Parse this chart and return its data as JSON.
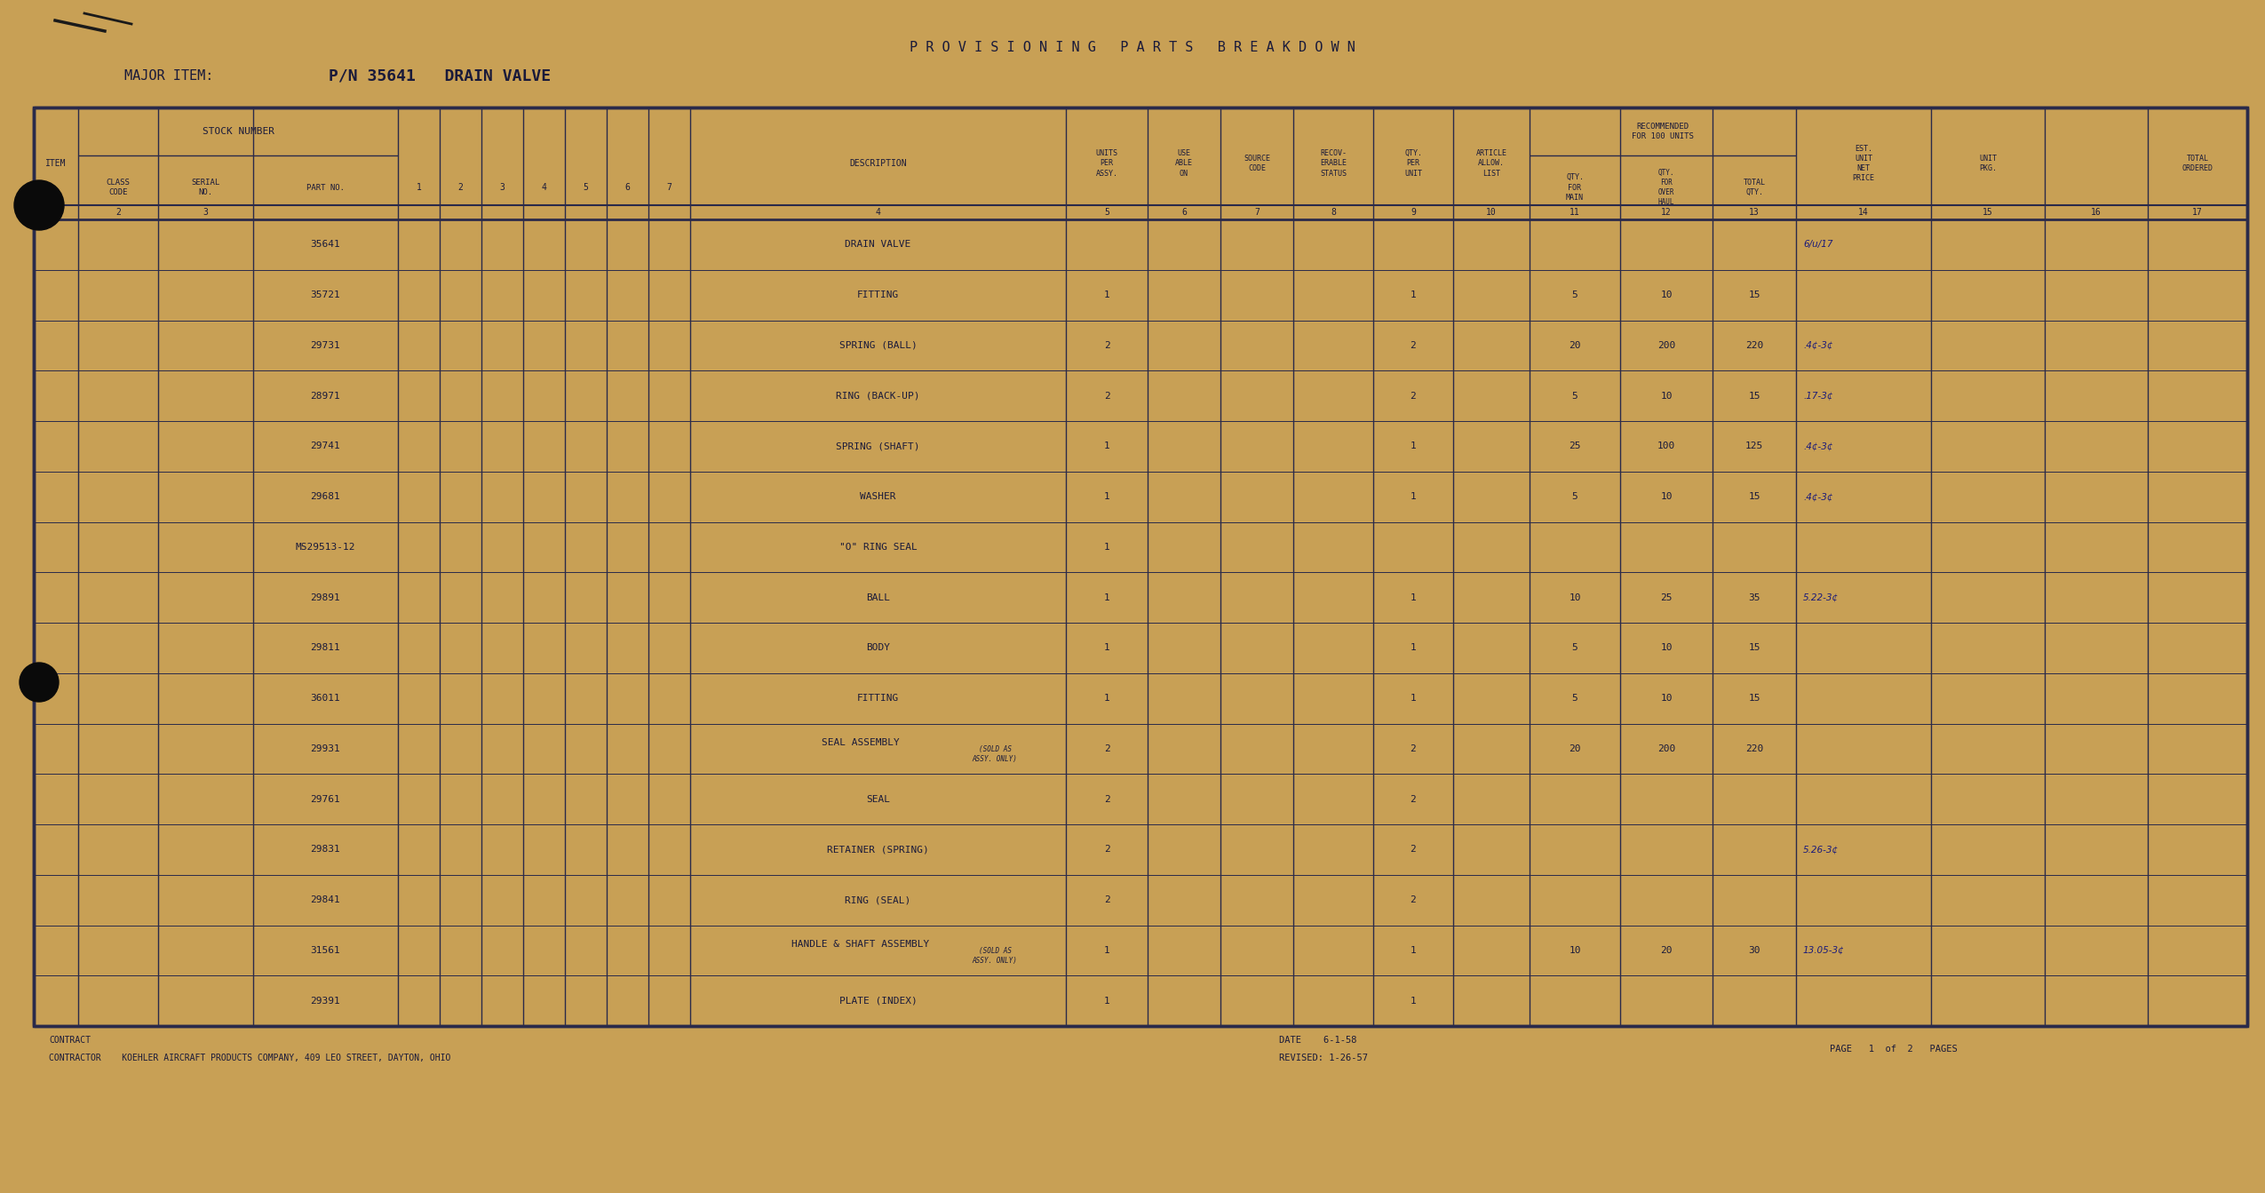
{
  "bg_color": "#C8A055",
  "line_color": "#2a2a4a",
  "text_color": "#1a1a3a",
  "title": "P R O V I S I O N I N G   P A R T S   B R E A K D O W N",
  "major_item_label": "MAJOR ITEM:",
  "major_item_value": "P/N 35641   DRAIN VALVE",
  "rows": [
    {
      "part_no": "35641",
      "description": "DRAIN VALVE",
      "note": "",
      "upa": "",
      "qpu": "",
      "qfm": "",
      "qfoh": "",
      "tqty": "",
      "price": "6/u/17",
      "indent": 0
    },
    {
      "part_no": "35721",
      "description": "FITTING",
      "note": "",
      "upa": "1",
      "qpu": "1",
      "qfm": "5",
      "qfoh": "10",
      "tqty": "15",
      "price": "",
      "indent": 0
    },
    {
      "part_no": "29731",
      "description": "SPRING (BALL)",
      "note": "",
      "upa": "2",
      "qpu": "2",
      "qfm": "20",
      "qfoh": "200",
      "tqty": "220",
      "price": ".4¢-3¢",
      "indent": 0
    },
    {
      "part_no": "28971",
      "description": "RING (BACK-UP)",
      "note": "",
      "upa": "2",
      "qpu": "2",
      "qfm": "5",
      "qfoh": "10",
      "tqty": "15",
      "price": ".17-3¢",
      "indent": 0
    },
    {
      "part_no": "29741",
      "description": "SPRING (SHAFT)",
      "note": "",
      "upa": "1",
      "qpu": "1",
      "qfm": "25",
      "qfoh": "100",
      "tqty": "125",
      "price": ".4¢-3¢",
      "indent": 0
    },
    {
      "part_no": "29681",
      "description": "WASHER",
      "note": "",
      "upa": "1",
      "qpu": "1",
      "qfm": "5",
      "qfoh": "10",
      "tqty": "15",
      "price": ".4¢-3¢",
      "indent": 0
    },
    {
      "part_no": "MS29513-12",
      "description": "\"O\" RING SEAL",
      "note": "",
      "upa": "1",
      "qpu": "",
      "qfm": "",
      "qfoh": "",
      "tqty": "",
      "price": "",
      "indent": 0
    },
    {
      "part_no": "29891",
      "description": "BALL",
      "note": "",
      "upa": "1",
      "qpu": "1",
      "qfm": "10",
      "qfoh": "25",
      "tqty": "35",
      "price": "5.22-3¢",
      "indent": 0
    },
    {
      "part_no": "29811",
      "description": "BODY",
      "note": "",
      "upa": "1",
      "qpu": "1",
      "qfm": "5",
      "qfoh": "10",
      "tqty": "15",
      "price": "",
      "indent": 0
    },
    {
      "part_no": "36011",
      "description": "FITTING",
      "note": "",
      "upa": "1",
      "qpu": "1",
      "qfm": "5",
      "qfoh": "10",
      "tqty": "15",
      "price": "",
      "indent": 0
    },
    {
      "part_no": "29931",
      "description": "SEAL ASSEMBLY",
      "note": "(SOLD AS\nASSY. ONLY)",
      "upa": "2",
      "qpu": "2",
      "qfm": "20",
      "qfoh": "200",
      "tqty": "220",
      "price": "",
      "indent": 0
    },
    {
      "part_no": "29761",
      "description": "SEAL",
      "note": "",
      "upa": "2",
      "qpu": "2",
      "qfm": "",
      "qfoh": "",
      "tqty": "",
      "price": "",
      "indent": 1
    },
    {
      "part_no": "29831",
      "description": "RETAINER (SPRING)",
      "note": "",
      "upa": "2",
      "qpu": "2",
      "qfm": "",
      "qfoh": "",
      "tqty": "",
      "price": "5.26-3¢",
      "indent": 1
    },
    {
      "part_no": "29841",
      "description": "RING (SEAL)",
      "note": "",
      "upa": "2",
      "qpu": "2",
      "qfm": "",
      "qfoh": "",
      "tqty": "",
      "price": "",
      "indent": 1
    },
    {
      "part_no": "31561",
      "description": "HANDLE & SHAFT ASSEMBLY",
      "note": "(SOLD AS\nASSY. ONLY)",
      "upa": "1",
      "qpu": "1",
      "qfm": "10",
      "qfoh": "20",
      "tqty": "30",
      "price": "13.05-3¢",
      "indent": 0
    },
    {
      "part_no": "29391",
      "description": "PLATE (INDEX)",
      "note": "",
      "upa": "1",
      "qpu": "1",
      "qfm": "",
      "qfoh": "",
      "tqty": "",
      "price": "",
      "indent": 0
    }
  ],
  "footer_contract": "CONTRACT",
  "footer_contractor": "CONTRACTOR    KOEHLER AIRCRAFT PRODUCTS COMPANY, 409 LEO STREET, DAYTON, OHIO",
  "footer_date": "DATE    6-1-58",
  "footer_revised": "REVISED: 1-26-57",
  "footer_page": "PAGE   1  of  2   PAGES"
}
